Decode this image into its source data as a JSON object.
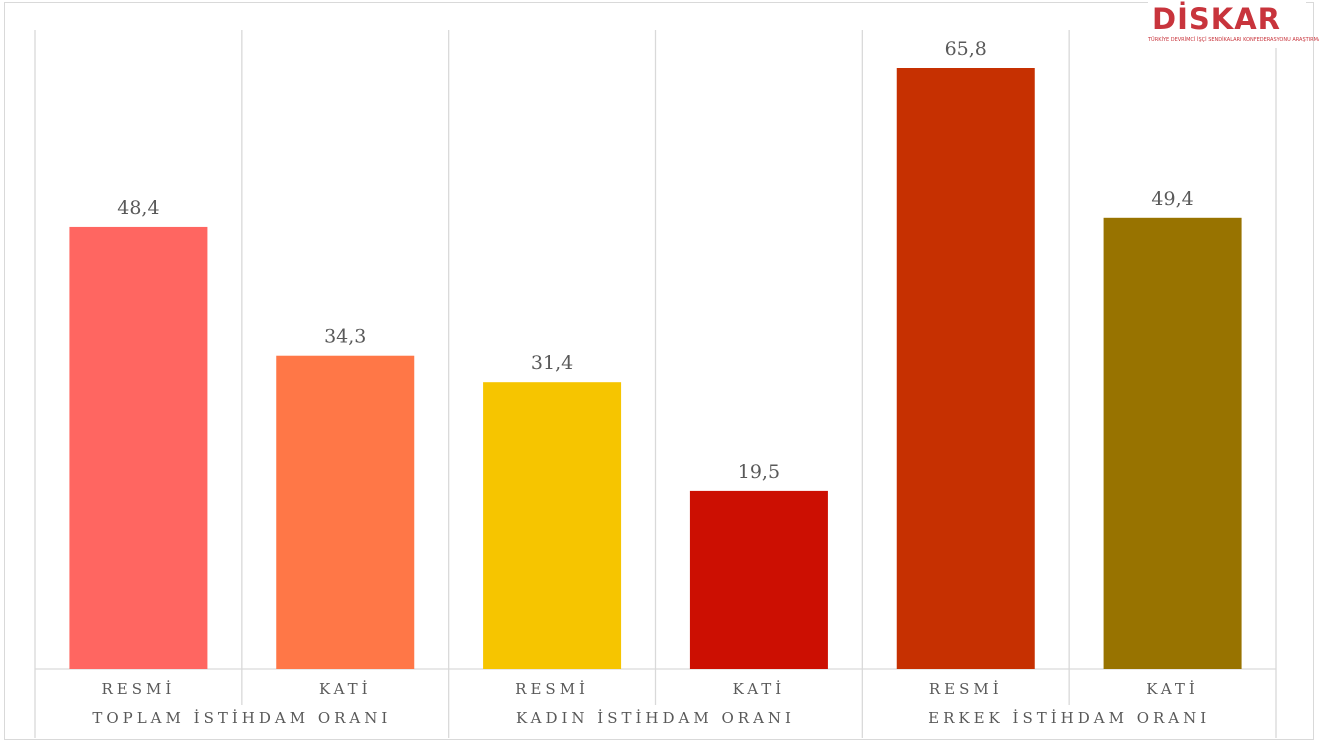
{
  "chart_data": {
    "type": "bar",
    "groups": [
      "TOPLAM İSTİHDAM ORANI",
      "KADIN İSTİHDAM ORANI",
      "ERKEK İSTİHDAM ORANI"
    ],
    "categories": [
      "RESMİ",
      "KATİ",
      "RESMİ",
      "KATİ",
      "RESMİ",
      "KATİ"
    ],
    "values": [
      48.4,
      34.3,
      31.4,
      19.5,
      65.8,
      49.4
    ],
    "value_labels": [
      "48,4",
      "34,3",
      "31,4",
      "19,5",
      "65,8",
      "49,4"
    ],
    "colors": [
      "#ff6661",
      "#ff7747",
      "#f6c500",
      "#cc0f02",
      "#c63001",
      "#987300"
    ],
    "ylim": [
      0,
      70
    ],
    "grid": false,
    "legend": "none"
  },
  "logo": {
    "word": "DİSKAR",
    "subtitle": "TÜRKİYE DEVRİMCİ İŞÇİ SENDİKALARI KONFEDERASYONU ARAŞTIRMA MERKEZİ"
  }
}
